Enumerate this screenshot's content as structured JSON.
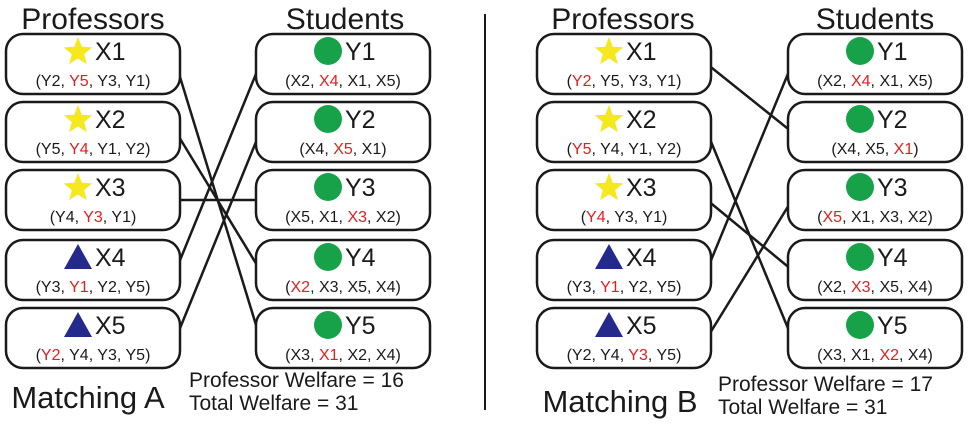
{
  "colors": {
    "star": "#f5e81e",
    "circle": "#17a24a",
    "triangle": "#232a8c",
    "highlight": "#e02020",
    "text": "#1a1a1a",
    "box_border": "#1a1a1a",
    "line": "#1a1a1a"
  },
  "headers": {
    "professors": "Professors",
    "students": "Students"
  },
  "panels": [
    {
      "id": "A",
      "title": "Matching A",
      "welfare": {
        "professor": "Professor Welfare = 16",
        "total": "Total Welfare = 31"
      },
      "professors": [
        {
          "name": "X1",
          "icon": "star-icon",
          "prefs": [
            "Y2",
            "Y5",
            "Y3",
            "Y1"
          ],
          "highlight": 1
        },
        {
          "name": "X2",
          "icon": "star-icon",
          "prefs": [
            "Y5",
            "Y4",
            "Y1",
            "Y2"
          ],
          "highlight": 1
        },
        {
          "name": "X3",
          "icon": "star-icon",
          "prefs": [
            "Y4",
            "Y3",
            "Y1"
          ],
          "highlight": 1
        },
        {
          "name": "X4",
          "icon": "triangle-icon",
          "prefs": [
            "Y3",
            "Y1",
            "Y2",
            "Y5"
          ],
          "highlight": 1
        },
        {
          "name": "X5",
          "icon": "triangle-icon",
          "prefs": [
            "Y2",
            "Y4",
            "Y3",
            "Y5"
          ],
          "highlight": 0
        }
      ],
      "students": [
        {
          "name": "Y1",
          "icon": "circle-icon",
          "prefs": [
            "X2",
            "X4",
            "X1",
            "X5"
          ],
          "highlight": 1
        },
        {
          "name": "Y2",
          "icon": "circle-icon",
          "prefs": [
            "X4",
            "X5",
            "X1"
          ],
          "highlight": 1
        },
        {
          "name": "Y3",
          "icon": "circle-icon",
          "prefs": [
            "X5",
            "X1",
            "X3",
            "X2"
          ],
          "highlight": 2
        },
        {
          "name": "Y4",
          "icon": "circle-icon",
          "prefs": [
            "X2",
            "X3",
            "X5",
            "X4"
          ],
          "highlight": 0
        },
        {
          "name": "Y5",
          "icon": "circle-icon",
          "prefs": [
            "X3",
            "X1",
            "X2",
            "X4"
          ],
          "highlight": 1
        }
      ],
      "matches": [
        [
          0,
          4
        ],
        [
          1,
          3
        ],
        [
          2,
          2
        ],
        [
          3,
          0
        ],
        [
          4,
          1
        ]
      ]
    },
    {
      "id": "B",
      "title": "Matching B",
      "welfare": {
        "professor": "Professor Welfare = 17",
        "total": "Total Welfare = 31"
      },
      "professors": [
        {
          "name": "X1",
          "icon": "star-icon",
          "prefs": [
            "Y2",
            "Y5",
            "Y3",
            "Y1"
          ],
          "highlight": 0
        },
        {
          "name": "X2",
          "icon": "star-icon",
          "prefs": [
            "Y5",
            "Y4",
            "Y1",
            "Y2"
          ],
          "highlight": 0
        },
        {
          "name": "X3",
          "icon": "star-icon",
          "prefs": [
            "Y4",
            "Y3",
            "Y1"
          ],
          "highlight": 0
        },
        {
          "name": "X4",
          "icon": "triangle-icon",
          "prefs": [
            "Y3",
            "Y1",
            "Y2",
            "Y5"
          ],
          "highlight": 1
        },
        {
          "name": "X5",
          "icon": "triangle-icon",
          "prefs": [
            "Y2",
            "Y4",
            "Y3",
            "Y5"
          ],
          "highlight": 2
        }
      ],
      "students": [
        {
          "name": "Y1",
          "icon": "circle-icon",
          "prefs": [
            "X2",
            "X4",
            "X1",
            "X5"
          ],
          "highlight": 1
        },
        {
          "name": "Y2",
          "icon": "circle-icon",
          "prefs": [
            "X4",
            "X5",
            "X1"
          ],
          "highlight": 2
        },
        {
          "name": "Y3",
          "icon": "circle-icon",
          "prefs": [
            "X5",
            "X1",
            "X3",
            "X2"
          ],
          "highlight": 0
        },
        {
          "name": "Y4",
          "icon": "circle-icon",
          "prefs": [
            "X2",
            "X3",
            "X5",
            "X4"
          ],
          "highlight": 1
        },
        {
          "name": "Y5",
          "icon": "circle-icon",
          "prefs": [
            "X3",
            "X1",
            "X2",
            "X4"
          ],
          "highlight": 2
        }
      ],
      "matches": [
        [
          0,
          1
        ],
        [
          1,
          4
        ],
        [
          2,
          3
        ],
        [
          3,
          0
        ],
        [
          4,
          2
        ]
      ]
    }
  ]
}
